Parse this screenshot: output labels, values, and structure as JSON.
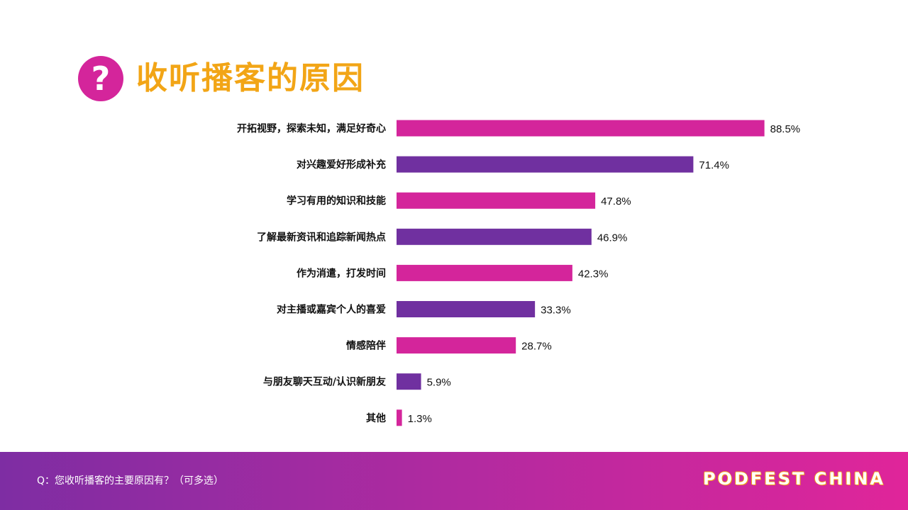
{
  "header": {
    "icon": "question-mark-icon",
    "badge_glyph": "?",
    "title": "收听播客的原因"
  },
  "chart_data": {
    "type": "bar",
    "orientation": "horizontal",
    "title": "收听播客的原因",
    "categories": [
      "开拓视野，探索未知，满足好奇心",
      "对兴趣爱好形成补充",
      "学习有用的知识和技能",
      "了解最新资讯和追踪新闻热点",
      "作为消遣，打发时间",
      "对主播或嘉宾个人的喜爱",
      "情感陪伴",
      "与朋友聊天互动/认识新朋友",
      "其他"
    ],
    "values": [
      88.5,
      71.4,
      47.8,
      46.9,
      42.3,
      33.3,
      28.7,
      5.9,
      1.3
    ],
    "value_labels": [
      "88.5%",
      "71.4%",
      "47.8%",
      "46.9%",
      "42.3%",
      "33.3%",
      "28.7%",
      "5.9%",
      "1.3%"
    ],
    "unit": "%",
    "xlim": [
      0,
      100
    ],
    "grid": false,
    "legend": "none",
    "colors": [
      "#d4259b",
      "#7030a0"
    ]
  },
  "footer": {
    "question": "Q：您收听播客的主要原因有？（可多选）",
    "brand": "PODFEST CHINA",
    "gradient_start": "#7e2da3",
    "gradient_end": "#e0259a"
  }
}
